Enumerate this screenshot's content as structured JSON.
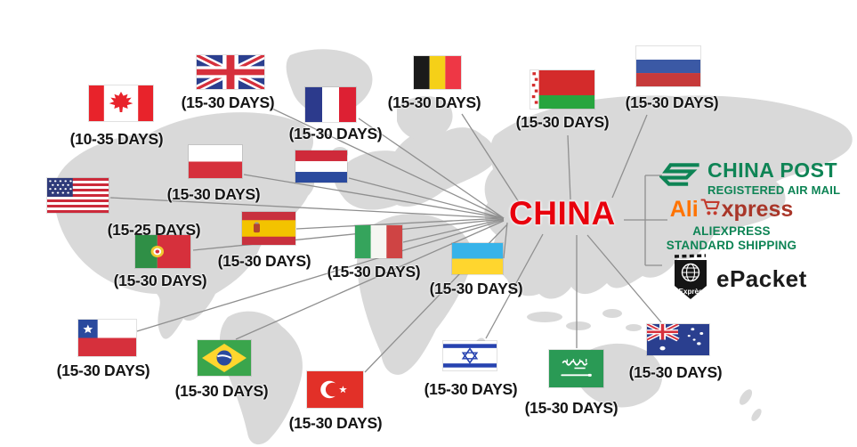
{
  "china_label": "CHINA",
  "colors": {
    "china_red": "#e8000d",
    "post_green": "#0e8455",
    "ali_orange": "#ff7300",
    "ali_dark_red": "#a93629",
    "line_gray": "#8f8f8f",
    "map_gray": "#d9d9d9",
    "label_black": "#151515"
  },
  "countries": [
    {
      "id": "canada",
      "name": "Canada",
      "days": "(10-35 DAYS)",
      "flag": [
        100,
        96,
        72,
        40
      ],
      "label": [
        131,
        146
      ],
      "line": null
    },
    {
      "id": "uk",
      "name": "United Kingdom",
      "days": "(15-30 DAYS)",
      "flag": [
        221,
        62,
        76,
        38
      ],
      "label": [
        256,
        105
      ],
      "line": [
        [
          566,
          245
        ],
        [
          306,
          122
        ]
      ]
    },
    {
      "id": "france",
      "name": "France",
      "days": "(15-30 DAYS)",
      "flag": [
        343,
        98,
        57,
        39
      ],
      "label": [
        377,
        140
      ],
      "line": [
        [
          566,
          245
        ],
        [
          403,
          133
        ]
      ]
    },
    {
      "id": "belgium",
      "name": "Belgium",
      "days": "(15-30 DAYS)",
      "flag": [
        465,
        63,
        53,
        37
      ],
      "label": [
        488,
        105
      ],
      "line": [
        [
          585,
          230
        ],
        [
          519,
          128
        ]
      ]
    },
    {
      "id": "belarus",
      "name": "Belarus",
      "days": "(15-30 DAYS)",
      "flag": [
        596,
        79,
        72,
        43
      ],
      "label": [
        632,
        127
      ],
      "line": [
        [
          641,
          224
        ],
        [
          638,
          152
        ]
      ]
    },
    {
      "id": "russia",
      "name": "Russia",
      "days": "(15-30 DAYS)",
      "flag": [
        715,
        52,
        72,
        45
      ],
      "label": [
        755,
        105
      ],
      "line": [
        [
          688,
          222
        ],
        [
          727,
          129
        ]
      ]
    },
    {
      "id": "poland",
      "name": "Poland",
      "days": "(15-30 DAYS)",
      "flag": [
        212,
        163,
        60,
        37
      ],
      "label": [
        240,
        208
      ],
      "line": [
        [
          566,
          245
        ],
        [
          274,
          196
        ]
      ]
    },
    {
      "id": "netherlands",
      "name": "Netherlands",
      "days": null,
      "flag": [
        332,
        169,
        58,
        36
      ],
      "label": null,
      "line": [
        [
          566,
          245
        ],
        [
          392,
          200
        ]
      ]
    },
    {
      "id": "usa",
      "name": "United States",
      "days": "(15-25 DAYS)",
      "flag": [
        53,
        200,
        69,
        39
      ],
      "label": [
        173,
        248
      ],
      "line": [
        [
          566,
          245
        ],
        [
          124,
          222
        ]
      ]
    },
    {
      "id": "spain",
      "name": "Spain",
      "days": "(15-30 DAYS)",
      "flag": [
        272,
        238,
        60,
        37
      ],
      "label": [
        297,
        283
      ],
      "line": [
        [
          566,
          245
        ],
        [
          333,
          257
        ]
      ]
    },
    {
      "id": "portugal",
      "name": "Portugal",
      "days": "(15-30 DAYS)",
      "flag": [
        152,
        264,
        62,
        37
      ],
      "label": [
        180,
        305
      ],
      "line": [
        [
          566,
          246
        ],
        [
          217,
          281
        ]
      ]
    },
    {
      "id": "italy",
      "name": "Italy",
      "days": "(15-30 DAYS)",
      "flag": [
        399,
        253,
        53,
        37
      ],
      "label": [
        420,
        295
      ],
      "line": [
        [
          566,
          246
        ],
        [
          453,
          272
        ]
      ]
    },
    {
      "id": "ukraine",
      "name": "Ukraine",
      "days": "(15-30 DAYS)",
      "flag": [
        508,
        273,
        57,
        35
      ],
      "label": [
        535,
        314
      ],
      "line": [
        [
          570,
          250
        ],
        [
          566,
          290
        ]
      ]
    },
    {
      "id": "chile",
      "name": "Chile",
      "days": "(15-30 DAYS)",
      "flag": [
        88,
        359,
        65,
        41
      ],
      "label": [
        116,
        406
      ],
      "line": [
        [
          566,
          247
        ],
        [
          154,
          372
        ]
      ]
    },
    {
      "id": "brazil",
      "name": "Brazil",
      "days": "(15-30 DAYS)",
      "flag": [
        222,
        382,
        60,
        40
      ],
      "label": [
        249,
        429
      ],
      "line": [
        [
          566,
          248
        ],
        [
          265,
          381
        ]
      ]
    },
    {
      "id": "turkey",
      "name": "Turkey",
      "days": "(15-30 DAYS)",
      "flag": [
        345,
        417,
        63,
        41
      ],
      "label": [
        377,
        465
      ],
      "line": [
        [
          570,
          252
        ],
        [
          410,
          418
        ]
      ]
    },
    {
      "id": "israel",
      "name": "Israel",
      "days": "(15-30 DAYS)",
      "flag": [
        498,
        383,
        60,
        33
      ],
      "label": [
        529,
        427
      ],
      "line": [
        [
          610,
          263
        ],
        [
          546,
          380
        ]
      ]
    },
    {
      "id": "saudi",
      "name": "Saudi Arabia",
      "days": "(15-30 DAYS)",
      "flag": [
        617,
        393,
        61,
        42
      ],
      "label": [
        642,
        448
      ],
      "line": [
        [
          648,
          264
        ],
        [
          648,
          391
        ]
      ]
    },
    {
      "id": "australia",
      "name": "Australia",
      "days": "(15-30 DAYS)",
      "flag": [
        727,
        364,
        70,
        35
      ],
      "label": [
        759,
        408
      ],
      "line": [
        [
          660,
          264
        ],
        [
          743,
          362
        ]
      ]
    }
  ],
  "bracket_lines": [
    [
      [
        701,
        247
      ],
      [
        725,
        247
      ]
    ],
    [
      [
        725,
        197
      ],
      [
        725,
        298
      ]
    ],
    [
      [
        725,
        197
      ],
      [
        744,
        197
      ]
    ],
    [
      [
        725,
        298
      ],
      [
        744,
        298
      ]
    ],
    [
      [
        725,
        247
      ],
      [
        750,
        247
      ]
    ]
  ],
  "shipping": {
    "china_post": {
      "title": "CHINA POST",
      "subtitle": "REGISTERED AIR MAIL"
    },
    "aliexpress": {
      "brand_prefix": "Ali",
      "brand_suffix": "xpress",
      "line1": "ALIEXPRESS",
      "line2": "STANDARD SHIPPING"
    },
    "epacket": {
      "label": "ePacket",
      "badge": "Exprès"
    }
  }
}
